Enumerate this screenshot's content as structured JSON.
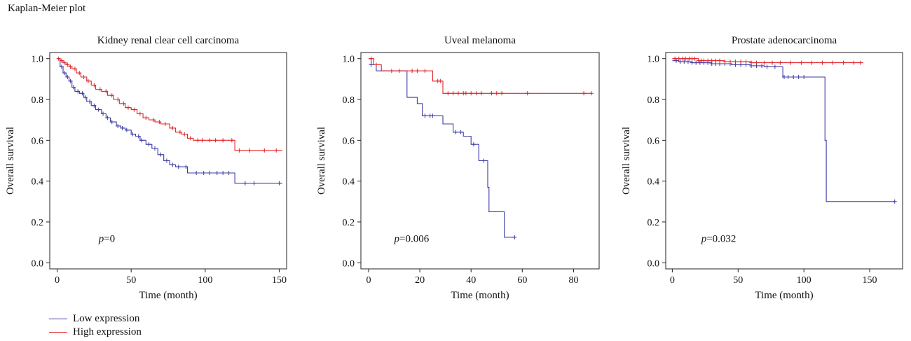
{
  "figure_title": "Kaplan-Meier plot",
  "legend": [
    {
      "label": "Low expression",
      "color": "#3a3aa6"
    },
    {
      "label": "High expression",
      "color": "#e0242a"
    }
  ],
  "chart_data": [
    {
      "type": "line",
      "title": "Kidney renal clear cell carcinoma",
      "xlabel": "Time (month)",
      "ylabel": "Overall survival",
      "xlim": [
        -5,
        155
      ],
      "ylim": [
        -0.03,
        1.03
      ],
      "xticks": [
        0,
        50,
        100,
        150
      ],
      "yticks": [
        0.0,
        0.2,
        0.4,
        0.6,
        0.8,
        1.0
      ],
      "annotation": {
        "p_label": "p",
        "p_value": "=0",
        "x": 28,
        "y": 0.12
      },
      "series": [
        {
          "name": "Low expression",
          "color": "#3a3aa6",
          "x": [
            0,
            2,
            4,
            6,
            8,
            10,
            12,
            15,
            18,
            20,
            23,
            26,
            30,
            33,
            36,
            40,
            43,
            46,
            50,
            53,
            56,
            60,
            64,
            68,
            72,
            76,
            80,
            84,
            88,
            92,
            96,
            100,
            105,
            110,
            115,
            120,
            125,
            130,
            140,
            152
          ],
          "y": [
            1.0,
            0.96,
            0.93,
            0.91,
            0.89,
            0.86,
            0.84,
            0.83,
            0.81,
            0.79,
            0.77,
            0.75,
            0.73,
            0.71,
            0.69,
            0.67,
            0.66,
            0.65,
            0.63,
            0.62,
            0.6,
            0.58,
            0.56,
            0.53,
            0.5,
            0.48,
            0.47,
            0.47,
            0.44,
            0.44,
            0.44,
            0.44,
            0.44,
            0.44,
            0.44,
            0.39,
            0.39,
            0.39,
            0.39,
            0.39
          ],
          "censor_x": [
            3,
            5,
            7,
            9,
            11,
            14,
            17,
            19,
            22,
            25,
            28,
            31,
            34,
            37,
            41,
            44,
            47,
            51,
            55,
            57,
            62,
            66,
            70,
            74,
            78,
            82,
            87,
            94,
            99,
            103,
            108,
            112,
            116,
            127,
            133,
            150
          ]
        },
        {
          "name": "High expression",
          "color": "#e0242a",
          "x": [
            0,
            2,
            4,
            6,
            8,
            10,
            13,
            16,
            20,
            23,
            26,
            30,
            34,
            38,
            42,
            46,
            50,
            54,
            58,
            62,
            66,
            70,
            76,
            80,
            84,
            88,
            92,
            96,
            100,
            105,
            110,
            115,
            120,
            125,
            135,
            152
          ],
          "y": [
            1.0,
            0.99,
            0.98,
            0.97,
            0.96,
            0.95,
            0.93,
            0.91,
            0.89,
            0.87,
            0.85,
            0.84,
            0.82,
            0.8,
            0.78,
            0.76,
            0.75,
            0.73,
            0.71,
            0.7,
            0.69,
            0.68,
            0.66,
            0.64,
            0.63,
            0.61,
            0.6,
            0.6,
            0.6,
            0.6,
            0.6,
            0.6,
            0.55,
            0.55,
            0.55,
            0.55
          ],
          "censor_x": [
            1,
            3,
            5,
            7,
            9,
            12,
            15,
            18,
            21,
            25,
            29,
            33,
            37,
            41,
            45,
            48,
            52,
            56,
            60,
            65,
            69,
            73,
            78,
            83,
            86,
            90,
            95,
            98,
            103,
            107,
            112,
            118,
            123,
            130,
            140,
            148
          ]
        }
      ]
    },
    {
      "type": "line",
      "title": "Uveal melanoma",
      "xlabel": "Time (month)",
      "ylabel": "Overall survival",
      "xlim": [
        -3,
        90
      ],
      "ylim": [
        -0.03,
        1.03
      ],
      "xticks": [
        0,
        20,
        40,
        60,
        80
      ],
      "yticks": [
        0.0,
        0.2,
        0.4,
        0.6,
        0.8,
        1.0
      ],
      "annotation": {
        "p_label": "p",
        "p_value": "=0.006",
        "x": 10,
        "y": 0.12
      },
      "series": [
        {
          "name": "Low expression",
          "color": "#3a3aa6",
          "x": [
            0,
            1,
            3,
            13,
            15,
            19,
            21,
            26,
            29,
            33,
            37,
            40,
            43,
            46,
            46.5,
            47,
            48,
            53,
            57
          ],
          "y": [
            1.0,
            0.97,
            0.94,
            0.94,
            0.81,
            0.78,
            0.72,
            0.72,
            0.68,
            0.64,
            0.62,
            0.58,
            0.5,
            0.5,
            0.37,
            0.25,
            0.25,
            0.125,
            0.125
          ],
          "censor_x": [
            1,
            22,
            24,
            25,
            34,
            36,
            41,
            45,
            57
          ]
        },
        {
          "name": "High expression",
          "color": "#e0242a",
          "x": [
            0,
            2,
            5,
            25,
            29,
            31,
            40,
            50,
            60,
            87
          ],
          "y": [
            1.0,
            0.97,
            0.94,
            0.89,
            0.83,
            0.83,
            0.83,
            0.83,
            0.83,
            0.83
          ],
          "censor_x": [
            1,
            3,
            9,
            12,
            17,
            19,
            22,
            27,
            28,
            31,
            33,
            35,
            37,
            38,
            40,
            42,
            44,
            48,
            50,
            52,
            62,
            84,
            87
          ]
        }
      ]
    },
    {
      "type": "line",
      "title": "Prostate adenocarcinoma",
      "xlabel": "Time (month)",
      "ylabel": "Overall survival",
      "xlim": [
        -5,
        175
      ],
      "ylim": [
        -0.03,
        1.03
      ],
      "xticks": [
        0,
        50,
        100,
        150
      ],
      "yticks": [
        0.0,
        0.2,
        0.4,
        0.6,
        0.8,
        1.0
      ],
      "annotation": {
        "p_label": "p",
        "p_value": "=0.032",
        "x": 22,
        "y": 0.12
      },
      "series": [
        {
          "name": "Low expression",
          "color": "#3a3aa6",
          "x": [
            0,
            5,
            15,
            30,
            45,
            60,
            70,
            82,
            84,
            100,
            115,
            116,
            117,
            169
          ],
          "y": [
            0.99,
            0.985,
            0.98,
            0.975,
            0.97,
            0.965,
            0.96,
            0.96,
            0.91,
            0.91,
            0.91,
            0.6,
            0.3,
            0.3
          ],
          "censor_x": [
            3,
            6,
            9,
            12,
            15,
            18,
            21,
            24,
            27,
            30,
            33,
            36,
            40,
            44,
            48,
            52,
            56,
            60,
            64,
            68,
            72,
            78,
            85,
            88,
            92,
            96,
            100,
            169
          ]
        },
        {
          "name": "High expression",
          "color": "#e0242a",
          "x": [
            0,
            20,
            40,
            60,
            80,
            100,
            120,
            145
          ],
          "y": [
            1.0,
            0.99,
            0.985,
            0.98,
            0.98,
            0.98,
            0.98,
            0.98
          ],
          "censor_x": [
            2,
            5,
            8,
            10,
            13,
            15,
            17,
            20,
            22,
            24,
            27,
            30,
            33,
            36,
            40,
            44,
            48,
            52,
            56,
            60,
            64,
            70,
            76,
            82,
            90,
            98,
            106,
            114,
            122,
            130,
            138,
            143
          ]
        }
      ]
    }
  ]
}
